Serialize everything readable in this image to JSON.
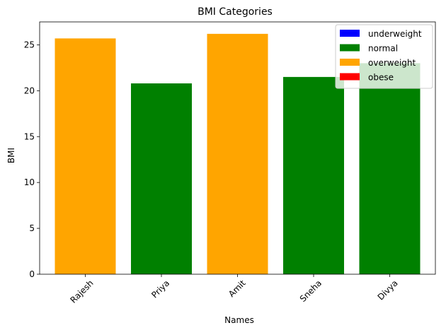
{
  "chart_data": {
    "type": "bar",
    "title": "BMI Categories",
    "xlabel": "Names",
    "ylabel": "BMI",
    "categories": [
      "Rajesh",
      "Priya",
      "Amit",
      "Sneha",
      "Divya"
    ],
    "values": [
      25.7,
      20.8,
      26.2,
      21.5,
      23.0
    ],
    "bar_categories": [
      "overweight",
      "normal",
      "overweight",
      "normal",
      "normal"
    ],
    "ylim": [
      0,
      27.5
    ],
    "yticks": [
      0,
      5,
      10,
      15,
      20,
      25
    ],
    "grid": false,
    "legend_position": "top-right",
    "legend": [
      {
        "label": "underweight",
        "color": "#0000ff"
      },
      {
        "label": "normal",
        "color": "#008000"
      },
      {
        "label": "overweight",
        "color": "#ffa500"
      },
      {
        "label": "obese",
        "color": "#ff0000"
      }
    ],
    "colors": {
      "underweight": "#0000ff",
      "normal": "#008000",
      "overweight": "#ffa500",
      "obese": "#ff0000"
    }
  }
}
